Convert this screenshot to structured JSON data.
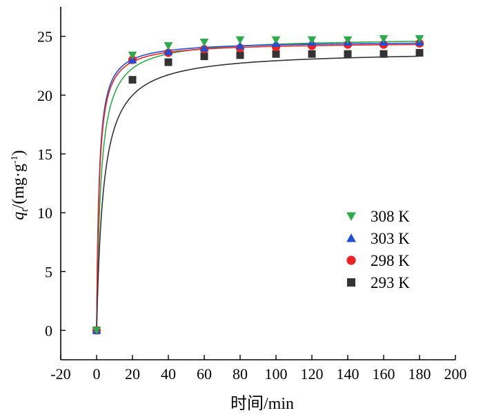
{
  "chart_data": {
    "type": "scatter",
    "x": [
      0,
      20,
      40,
      60,
      80,
      100,
      120,
      140,
      160,
      180
    ],
    "xlabel": "时间/min",
    "ylabel": {
      "main": "q",
      "sub": "t",
      "unit": "/(mg·g",
      "sup": "-1",
      "close": ")"
    },
    "xlim": [
      -20,
      200
    ],
    "ylim": [
      -2.5,
      27.5
    ],
    "xticks": [
      -20,
      0,
      20,
      40,
      60,
      80,
      100,
      120,
      140,
      160,
      180,
      200
    ],
    "yticks": [
      0,
      5,
      10,
      15,
      20,
      25
    ],
    "grid": false,
    "legend_position": "right",
    "series": [
      {
        "name": "308 K",
        "marker": "triangle-down",
        "color": "#2bab4a",
        "values": [
          0,
          23.4,
          24.2,
          24.5,
          24.7,
          24.7,
          24.7,
          24.7,
          24.8,
          24.8
        ],
        "fit": {
          "qe": 24.9,
          "k": 0.017
        }
      },
      {
        "name": "303 K",
        "marker": "triangle-up",
        "color": "#1f4fd6",
        "values": [
          0,
          23.0,
          23.7,
          24.0,
          24.2,
          24.4,
          24.5,
          24.5,
          24.5,
          24.5
        ],
        "fit": {
          "qe": 24.6,
          "k": 0.03
        }
      },
      {
        "name": "298 K",
        "marker": "circle",
        "color": "#ee2222",
        "values": [
          0,
          23.0,
          23.6,
          23.9,
          24.0,
          24.1,
          24.2,
          24.3,
          24.3,
          24.4
        ],
        "fit": {
          "qe": 24.5,
          "k": 0.028
        }
      },
      {
        "name": "293 K",
        "marker": "square",
        "color": "#333333",
        "values": [
          0,
          21.3,
          22.8,
          23.3,
          23.4,
          23.5,
          23.5,
          23.5,
          23.5,
          23.6
        ],
        "fit": {
          "qe": 23.8,
          "k": 0.011
        }
      }
    ]
  }
}
